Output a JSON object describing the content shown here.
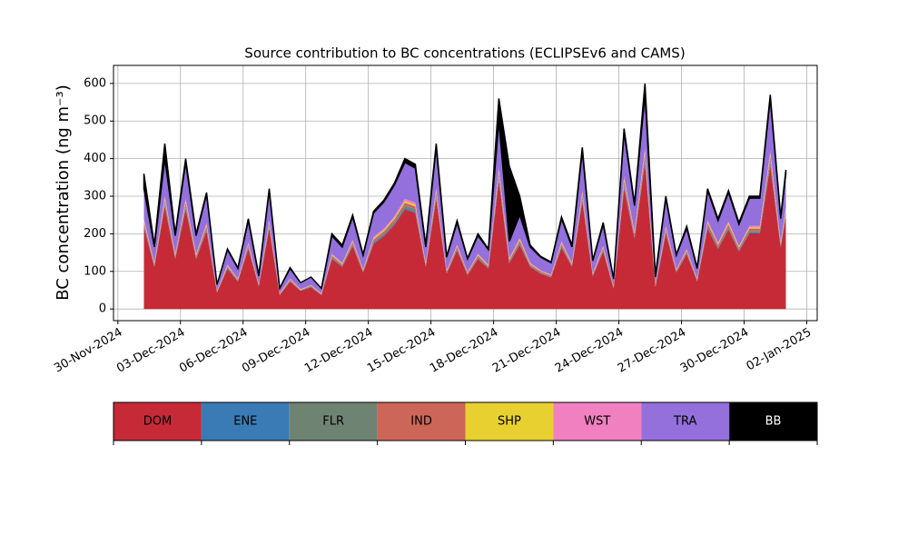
{
  "chart_data": {
    "type": "stacked_area",
    "title": "Source contribution to BC concentrations (ECLIPSEv6 and CAMS)",
    "y_label": "BC concentration (ng m⁻³)",
    "x": [
      "2024-12-01T06:00",
      "2024-12-01T18:00",
      "2024-12-02T06:00",
      "2024-12-02T18:00",
      "2024-12-03T06:00",
      "2024-12-03T18:00",
      "2024-12-04T06:00",
      "2024-12-04T18:00",
      "2024-12-05T06:00",
      "2024-12-05T18:00",
      "2024-12-06T06:00",
      "2024-12-06T18:00",
      "2024-12-07T06:00",
      "2024-12-07T18:00",
      "2024-12-08T06:00",
      "2024-12-08T18:00",
      "2024-12-09T06:00",
      "2024-12-09T18:00",
      "2024-12-10T06:00",
      "2024-12-10T18:00",
      "2024-12-11T06:00",
      "2024-12-11T18:00",
      "2024-12-12T06:00",
      "2024-12-12T18:00",
      "2024-12-13T06:00",
      "2024-12-13T18:00",
      "2024-12-14T06:00",
      "2024-12-14T18:00",
      "2024-12-15T06:00",
      "2024-12-15T18:00",
      "2024-12-16T06:00",
      "2024-12-16T18:00",
      "2024-12-17T06:00",
      "2024-12-17T18:00",
      "2024-12-18T06:00",
      "2024-12-18T18:00",
      "2024-12-19T06:00",
      "2024-12-19T18:00",
      "2024-12-20T06:00",
      "2024-12-20T18:00",
      "2024-12-21T06:00",
      "2024-12-21T18:00",
      "2024-12-22T06:00",
      "2024-12-22T18:00",
      "2024-12-23T06:00",
      "2024-12-23T18:00",
      "2024-12-24T06:00",
      "2024-12-24T18:00",
      "2024-12-25T06:00",
      "2024-12-25T18:00",
      "2024-12-26T06:00",
      "2024-12-26T18:00",
      "2024-12-27T06:00",
      "2024-12-27T18:00",
      "2024-12-28T06:00",
      "2024-12-28T18:00",
      "2024-12-29T06:00",
      "2024-12-29T18:00",
      "2024-12-30T06:00",
      "2024-12-30T18:00",
      "2024-12-31T06:00",
      "2024-12-31T18:00",
      "2025-01-01T00:00"
    ],
    "series": [
      {
        "name": "DOM",
        "color": "#c62a37",
        "values": [
          218,
          112,
          272,
          133,
          265,
          133,
          207,
          44,
          107,
          73,
          160,
          60,
          214,
          37,
          73,
          48,
          58,
          37,
          133,
          112,
          167,
          97,
          173,
          194,
          224,
          265,
          255,
          112,
          292,
          94,
          156,
          90,
          133,
          107,
          340,
          122,
          170,
          112,
          94,
          84,
          163,
          112,
          286,
          87,
          153,
          54,
          320,
          187,
          388,
          58,
          201,
          97,
          146,
          73,
          214,
          160,
          211,
          153,
          201,
          201,
          381,
          163,
          245
        ]
      },
      {
        "name": "ENE",
        "color": "#3a7bb5",
        "values": [
          3,
          2,
          4,
          2,
          4,
          2,
          3,
          1,
          2,
          1,
          2,
          1,
          3,
          1,
          1,
          1,
          1,
          1,
          2,
          2,
          2,
          1,
          3,
          3,
          3,
          4,
          4,
          2,
          4,
          1,
          2,
          1,
          2,
          2,
          5,
          2,
          3,
          2,
          1,
          1,
          2,
          2,
          4,
          1,
          2,
          1,
          5,
          3,
          6,
          1,
          3,
          1,
          2,
          1,
          3,
          2,
          3,
          2,
          3,
          3,
          6,
          2,
          4
        ]
      },
      {
        "name": "FLR",
        "color": "#6f8373",
        "values": [
          5,
          2,
          6,
          3,
          6,
          3,
          5,
          1,
          2,
          2,
          4,
          1,
          5,
          1,
          2,
          1,
          1,
          1,
          3,
          2,
          4,
          2,
          4,
          4,
          5,
          6,
          6,
          2,
          6,
          2,
          3,
          2,
          3,
          2,
          8,
          3,
          4,
          2,
          2,
          2,
          4,
          2,
          6,
          2,
          3,
          1,
          7,
          4,
          9,
          1,
          4,
          2,
          3,
          2,
          5,
          4,
          5,
          3,
          4,
          4,
          8,
          4,
          5
        ]
      },
      {
        "name": "IND",
        "color": "#cc6658",
        "values": [
          6,
          3,
          8,
          4,
          8,
          4,
          6,
          1,
          3,
          2,
          5,
          2,
          6,
          1,
          2,
          1,
          2,
          1,
          4,
          3,
          5,
          3,
          5,
          6,
          7,
          8,
          8,
          3,
          9,
          3,
          5,
          3,
          4,
          3,
          10,
          4,
          5,
          3,
          3,
          2,
          5,
          3,
          8,
          3,
          5,
          2,
          9,
          6,
          11,
          2,
          6,
          3,
          4,
          2,
          6,
          5,
          6,
          5,
          6,
          6,
          11,
          5,
          7
        ]
      },
      {
        "name": "SHP",
        "color": "#e8d030",
        "values": [
          3,
          2,
          4,
          2,
          4,
          2,
          3,
          1,
          2,
          1,
          2,
          1,
          3,
          1,
          1,
          1,
          1,
          1,
          2,
          2,
          2,
          1,
          3,
          3,
          3,
          4,
          4,
          2,
          4,
          1,
          2,
          1,
          2,
          2,
          5,
          2,
          3,
          2,
          1,
          1,
          2,
          2,
          4,
          1,
          2,
          1,
          5,
          3,
          6,
          1,
          3,
          1,
          2,
          1,
          3,
          2,
          3,
          2,
          3,
          3,
          6,
          2,
          4
        ]
      },
      {
        "name": "WST",
        "color": "#f080c0",
        "values": [
          5,
          2,
          6,
          3,
          6,
          3,
          5,
          1,
          2,
          2,
          4,
          1,
          5,
          1,
          2,
          1,
          1,
          1,
          3,
          2,
          4,
          2,
          4,
          4,
          5,
          6,
          6,
          2,
          6,
          2,
          3,
          2,
          3,
          2,
          8,
          3,
          4,
          2,
          2,
          2,
          4,
          2,
          6,
          2,
          3,
          1,
          7,
          4,
          9,
          1,
          4,
          2,
          3,
          2,
          5,
          4,
          5,
          3,
          4,
          4,
          8,
          4,
          5
        ]
      },
      {
        "name": "TRA",
        "color": "#9370db",
        "values": [
          80,
          42,
          100,
          48,
          97,
          48,
          76,
          16,
          40,
          27,
          58,
          22,
          79,
          13,
          27,
          17,
          21,
          13,
          48,
          42,
          61,
          37,
          63,
          71,
          83,
          97,
          92,
          42,
          109,
          35,
          59,
          34,
          48,
          40,
          124,
          44,
          61,
          42,
          35,
          31,
          60,
          42,
          106,
          32,
          57,
          20,
          117,
          68,
          141,
          21,
          74,
          37,
          55,
          27,
          79,
          58,
          77,
          57,
          74,
          74,
          140,
          60,
          90
        ]
      },
      {
        "name": "BB",
        "color": "#000000",
        "values": [
          40,
          5,
          40,
          5,
          10,
          5,
          5,
          0,
          2,
          2,
          5,
          2,
          5,
          0,
          2,
          0,
          0,
          0,
          5,
          5,
          5,
          2,
          5,
          5,
          5,
          10,
          10,
          5,
          10,
          2,
          5,
          2,
          5,
          2,
          60,
          200,
          50,
          5,
          2,
          2,
          5,
          5,
          10,
          2,
          5,
          0,
          10,
          5,
          30,
          5,
          5,
          2,
          5,
          2,
          5,
          5,
          5,
          5,
          5,
          5,
          10,
          5,
          10
        ]
      }
    ],
    "xlim": [
      "2024-11-29T19:00",
      "2025-01-02T12:00"
    ],
    "xticks": [
      {
        "value": "2024-11-30",
        "label": "30-Nov-2024"
      },
      {
        "value": "2024-12-03",
        "label": "03-Dec-2024"
      },
      {
        "value": "2024-12-06",
        "label": "06-Dec-2024"
      },
      {
        "value": "2024-12-09",
        "label": "09-Dec-2024"
      },
      {
        "value": "2024-12-12",
        "label": "12-Dec-2024"
      },
      {
        "value": "2024-12-15",
        "label": "15-Dec-2024"
      },
      {
        "value": "2024-12-18",
        "label": "18-Dec-2024"
      },
      {
        "value": "2024-12-21",
        "label": "21-Dec-2024"
      },
      {
        "value": "2024-12-24",
        "label": "24-Dec-2024"
      },
      {
        "value": "2024-12-27",
        "label": "27-Dec-2024"
      },
      {
        "value": "2024-12-30",
        "label": "30-Dec-2024"
      },
      {
        "value": "2025-01-02",
        "label": "02-Jan-2025"
      }
    ],
    "ylim": [
      -31,
      648
    ],
    "yticks": [
      0,
      100,
      200,
      300,
      400,
      500,
      600
    ],
    "grid": true,
    "legend": "bottom"
  }
}
